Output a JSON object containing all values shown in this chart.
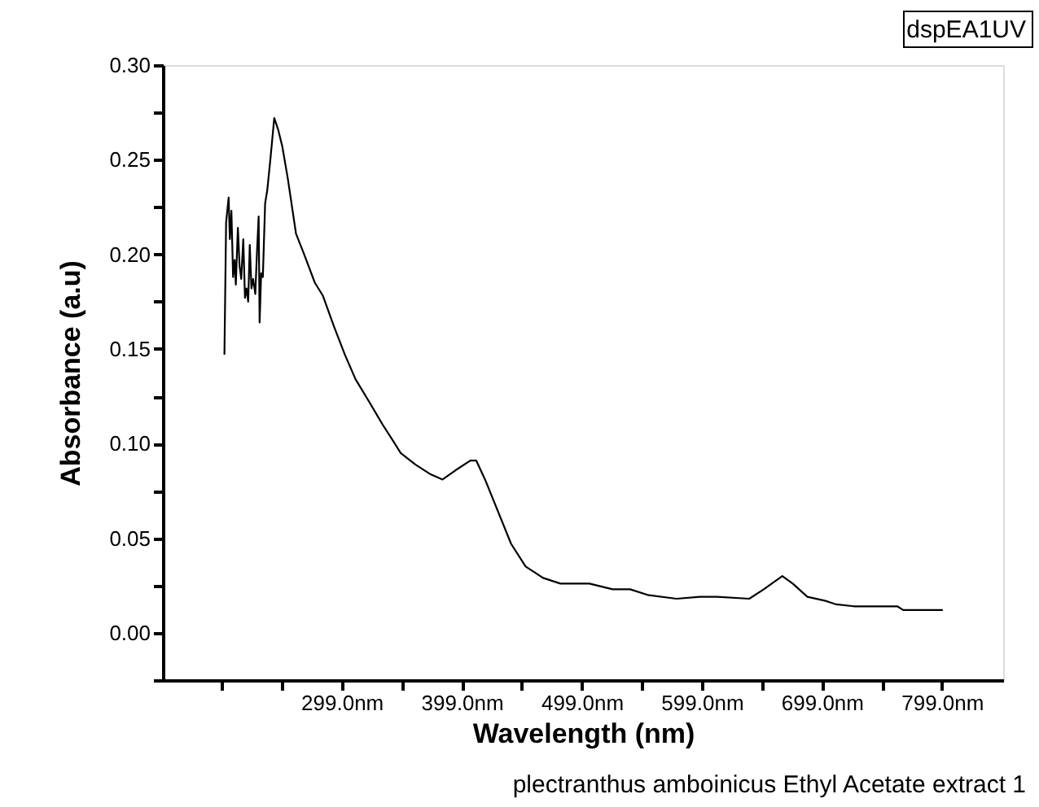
{
  "chart_data": {
    "type": "line",
    "xlabel": "Wavelength (nm)",
    "ylabel": "Absorbance (a.u)",
    "annotations": [
      "dspEA1UV",
      "plectranthus amboinicus Ethyl Acetate extract 1"
    ],
    "series": [
      {
        "color": "#000000",
        "x": [
          201.3,
          202.7,
          204.8,
          205.8,
          207.1,
          208.5,
          209.8,
          210.8,
          212.5,
          213.9,
          215.3,
          217,
          218.4,
          219.7,
          221.1,
          222.4,
          223.8,
          225.2,
          227,
          228.4,
          229.8,
          230.6,
          231.9,
          233.3,
          235.2,
          237,
          239.7,
          242.8,
          246,
          249.5,
          254.1,
          260.9,
          267.7,
          276.6,
          283.4,
          292.5,
          301.6,
          310.5,
          321.9,
          333.1,
          342.2,
          348.1,
          360.2,
          372.3,
          383,
          394.1,
          406.2,
          411.1,
          418.4,
          428,
          440.1,
          452.2,
          466.7,
          481.2,
          505.3,
          524.7,
          539.2,
          553.8,
          577.9,
          597.3,
          611.8,
          638.5,
          650.6,
          666,
          674.7,
          686.9,
          701.4,
          711,
          725.5,
          761.8,
          766.7,
          799.7
        ],
        "values": [
          0.147,
          0.217,
          0.23,
          0.208,
          0.223,
          0.188,
          0.197,
          0.184,
          0.214,
          0.194,
          0.187,
          0.208,
          0.177,
          0.182,
          0.175,
          0.205,
          0.182,
          0.187,
          0.179,
          0.201,
          0.22,
          0.164,
          0.19,
          0.188,
          0.227,
          0.234,
          0.251,
          0.272,
          0.266,
          0.257,
          0.24,
          0.211,
          0.2,
          0.185,
          0.178,
          0.162,
          0.147,
          0.134,
          0.122,
          0.11,
          0.101,
          0.095,
          0.089,
          0.084,
          0.081,
          0.086,
          0.091,
          0.091,
          0.081,
          0.066,
          0.047,
          0.035,
          0.029,
          0.026,
          0.026,
          0.023,
          0.023,
          0.02,
          0.018,
          0.019,
          0.019,
          0.018,
          0.023,
          0.03,
          0.026,
          0.019,
          0.017,
          0.015,
          0.014,
          0.014,
          0.012,
          0.012
        ]
      }
    ],
    "xlim": [
      150,
      850
    ],
    "xticks": [
      {
        "value": 199,
        "label": null
      },
      {
        "value": 249,
        "label": null
      },
      {
        "value": 299,
        "label": "299.0nm"
      },
      {
        "value": 349,
        "label": null
      },
      {
        "value": 399,
        "label": "399.0nm"
      },
      {
        "value": 449,
        "label": null
      },
      {
        "value": 499,
        "label": "499.0nm"
      },
      {
        "value": 549,
        "label": null
      },
      {
        "value": 599,
        "label": "599.0nm"
      },
      {
        "value": 649,
        "label": null
      },
      {
        "value": 699,
        "label": "699.0nm"
      },
      {
        "value": 749,
        "label": null
      },
      {
        "value": 799,
        "label": "799.0nm"
      }
    ],
    "ylim": [
      -0.025,
      0.3
    ],
    "yticks": [
      {
        "value": -0.025,
        "label": null
      },
      {
        "value": 0,
        "label": "0.00"
      },
      {
        "value": 0.025,
        "label": null
      },
      {
        "value": 0.05,
        "label": "0.05"
      },
      {
        "value": 0.075,
        "label": null
      },
      {
        "value": 0.1,
        "label": "0.10"
      },
      {
        "value": 0.125,
        "label": null
      },
      {
        "value": 0.15,
        "label": "0.15"
      },
      {
        "value": 0.175,
        "label": null
      },
      {
        "value": 0.2,
        "label": "0.20"
      },
      {
        "value": 0.225,
        "label": null
      },
      {
        "value": 0.25,
        "label": "0.25"
      },
      {
        "value": 0.275,
        "label": null
      },
      {
        "value": 0.3,
        "label": "0.30"
      }
    ],
    "grid": false,
    "legend": false,
    "line_style": "solid",
    "marker": "none"
  }
}
